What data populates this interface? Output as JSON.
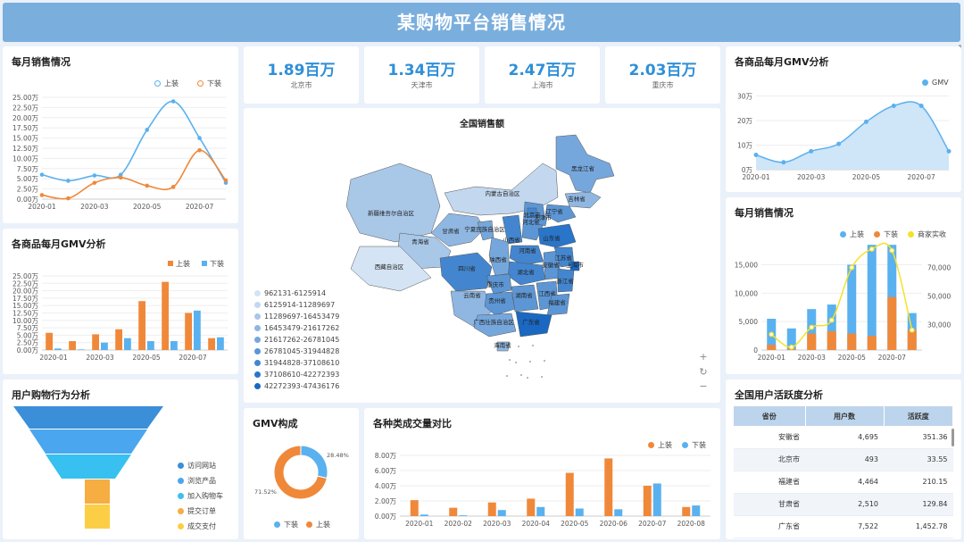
{
  "header": {
    "title": "某购物平台销售情况"
  },
  "stats": [
    {
      "value": "1.89百万",
      "label": "北京市"
    },
    {
      "value": "1.34百万",
      "label": "天津市"
    },
    {
      "value": "2.47百万",
      "label": "上海市"
    },
    {
      "value": "2.03百万",
      "label": "重庆市"
    }
  ],
  "monthly_sales_line": {
    "title": "每月销售情况",
    "legend": [
      "上装",
      "下装"
    ],
    "colors": [
      "#5ab1ef",
      "#f0883a"
    ]
  },
  "gmv_bar": {
    "title": "各商品每月GMV分析",
    "legend": [
      "上装",
      "下装"
    ],
    "colors": [
      "#f0883a",
      "#5ab1ef"
    ]
  },
  "funnel": {
    "title": "用户购物行为分析",
    "items": [
      "访问网站",
      "浏览产品",
      "加入购物车",
      "提交订单",
      "成交支付"
    ],
    "colors": [
      "#3a8fd8",
      "#4aa6ef",
      "#38c0f0",
      "#f6ad42",
      "#fcce45"
    ]
  },
  "map": {
    "title": "全国销售额",
    "legend": [
      "962131-6125914",
      "6125914-11289697",
      "11289697-16453479",
      "16453479-21617262",
      "21617262-26781045",
      "26781045-31944828",
      "31944828-37108610",
      "37108610-42272393",
      "42272393-47436176"
    ],
    "legend_colors": [
      "#d4e4f4",
      "#c3d8ef",
      "#a9c8e8",
      "#8fb7e2",
      "#76a7dc",
      "#5c96d5",
      "#4386cf",
      "#2975c9",
      "#1a68c2"
    ],
    "provinces": [
      "黑龙江省",
      "吉林省",
      "辽宁省",
      "内蒙古自治区",
      "新疆维吾尔自治区",
      "甘肃省",
      "青海省",
      "西藏自治区",
      "四川省",
      "云南省",
      "宁夏回族自治区",
      "山西省",
      "河北省",
      "北京市",
      "天津市",
      "山东省",
      "河南省",
      "陕西省",
      "湖北省",
      "安徽省",
      "江苏省",
      "上海市",
      "重庆市",
      "贵州省",
      "湖南省",
      "江西省",
      "浙江省",
      "福建省",
      "广西壮族自治区",
      "广东省",
      "海南省"
    ]
  },
  "gmv_donut": {
    "title": "GMV构成",
    "legend": [
      "下装",
      "上装"
    ],
    "values": [
      28.48,
      71.52
    ],
    "labels": [
      "28.48%",
      "71.52%"
    ],
    "colors": [
      "#5ab1ef",
      "#f0883a"
    ]
  },
  "category_bar": {
    "title": "各种类成交量对比",
    "legend": [
      "上装",
      "下装"
    ],
    "colors": [
      "#f0883a",
      "#5ab1ef"
    ]
  },
  "gmv_area": {
    "title": "各商品每月GMV分析",
    "legend": [
      "GMV"
    ],
    "color": "#5ab1ef"
  },
  "monthly_combo": {
    "title": "每月销售情况",
    "legend": [
      "上装",
      "下装",
      "商家实收"
    ],
    "colors": [
      "#5ab1ef",
      "#f0883a",
      "#f5e12a"
    ]
  },
  "activity": {
    "title": "全国用户活跃度分析",
    "headers": [
      "省份",
      "用户数",
      "活跃度"
    ],
    "rows": [
      [
        "安徽省",
        "4,695",
        "351.36"
      ],
      [
        "北京市",
        "493",
        "33.55"
      ],
      [
        "福建省",
        "4,464",
        "210.15"
      ],
      [
        "甘肃省",
        "2,510",
        "129.84"
      ],
      [
        "广东省",
        "7,522",
        "1,452.78"
      ]
    ]
  },
  "chart_data": [
    {
      "id": "monthly_sales_line",
      "type": "line",
      "x": [
        "2020-01",
        "2020-02",
        "2020-03",
        "2020-04",
        "2020-05",
        "2020-06",
        "2020-07",
        "2020-08"
      ],
      "xticks": [
        "2020-01",
        "2020-03",
        "2020-05",
        "2020-07"
      ],
      "yticks": [
        "0.00万",
        "2.50万",
        "5.00万",
        "7.50万",
        "10.00万",
        "12.50万",
        "15.00万",
        "17.50万",
        "20.00万",
        "22.50万",
        "25.00万"
      ],
      "ylim": [
        0,
        25
      ],
      "series": [
        {
          "name": "上装",
          "values": [
            6,
            4.5,
            5.8,
            6,
            17,
            24,
            15,
            4
          ]
        },
        {
          "name": "下装",
          "values": [
            1,
            0.2,
            4,
            5.3,
            3.3,
            3,
            12,
            4.6
          ]
        }
      ]
    },
    {
      "id": "gmv_bar",
      "type": "bar",
      "x": [
        "2020-01",
        "2020-02",
        "2020-03",
        "2020-04",
        "2020-05",
        "2020-06",
        "2020-07",
        "2020-08"
      ],
      "xticks": [
        "2020-01",
        "2020-03",
        "2020-05",
        "2020-07"
      ],
      "yticks": [
        "0.00万",
        "2.50万",
        "5.00万",
        "7.50万",
        "10.00万",
        "12.50万",
        "15.00万",
        "17.50万",
        "20.00万",
        "22.50万",
        "25.00万"
      ],
      "ylim": [
        0,
        25
      ],
      "series": [
        {
          "name": "上装",
          "values": [
            5.8,
            3,
            5.3,
            7,
            16.5,
            23,
            12.5,
            4
          ]
        },
        {
          "name": "下装",
          "values": [
            0.5,
            0.2,
            2.5,
            4,
            3,
            3,
            13.3,
            4.3
          ]
        }
      ]
    },
    {
      "id": "category_bar",
      "type": "bar",
      "x": [
        "2020-01",
        "2020-02",
        "2020-03",
        "2020-04",
        "2020-05",
        "2020-06",
        "2020-07",
        "2020-08"
      ],
      "yticks": [
        "0.00万",
        "2.00万",
        "4.00万",
        "6.00万",
        "8.00万"
      ],
      "ylim": [
        0,
        8
      ],
      "series": [
        {
          "name": "上装",
          "values": [
            2.1,
            1.1,
            1.8,
            2.3,
            5.7,
            7.6,
            4.0,
            1.2
          ]
        },
        {
          "name": "下装",
          "values": [
            0.2,
            0.1,
            0.8,
            1.2,
            1.0,
            0.9,
            4.3,
            1.4
          ]
        }
      ]
    },
    {
      "id": "gmv_area",
      "type": "area",
      "x": [
        "2020-01",
        "2020-02",
        "2020-03",
        "2020-04",
        "2020-05",
        "2020-06",
        "2020-07",
        "2020-08"
      ],
      "xticks": [
        "2020-01",
        "2020-03",
        "2020-05",
        "2020-07"
      ],
      "yticks": [
        "0万",
        "10万",
        "20万",
        "30万"
      ],
      "ylim": [
        0,
        32
      ],
      "series": [
        {
          "name": "GMV",
          "values": [
            6,
            3,
            7.5,
            10.5,
            19.5,
            26,
            26,
            7.5
          ]
        }
      ]
    },
    {
      "id": "monthly_combo",
      "type": "bar",
      "x": [
        "2020-01",
        "2020-02",
        "2020-03",
        "2020-04",
        "2020-05",
        "2020-06",
        "2020-07",
        "2020-08"
      ],
      "xticks": [
        "2020-01",
        "2020-03",
        "2020-05",
        "2020-07"
      ],
      "yticks_left": [
        "0",
        "5,000",
        "10,000",
        "15,000"
      ],
      "yticks_right": [
        "30,000",
        "50,000",
        "70,000"
      ],
      "ylim_left": [
        0,
        19000
      ],
      "ylim_right": [
        12000,
        88000
      ],
      "series": [
        {
          "name": "上装",
          "values": [
            5500,
            3800,
            7200,
            8000,
            15000,
            18500,
            18500,
            6500
          ]
        },
        {
          "name": "下装",
          "values": [
            900,
            200,
            2900,
            3300,
            2900,
            2500,
            9300,
            3500
          ]
        },
        {
          "name": "商家实收",
          "values": [
            23000,
            14000,
            28000,
            33000,
            70000,
            83000,
            82000,
            26000
          ]
        }
      ]
    }
  ]
}
